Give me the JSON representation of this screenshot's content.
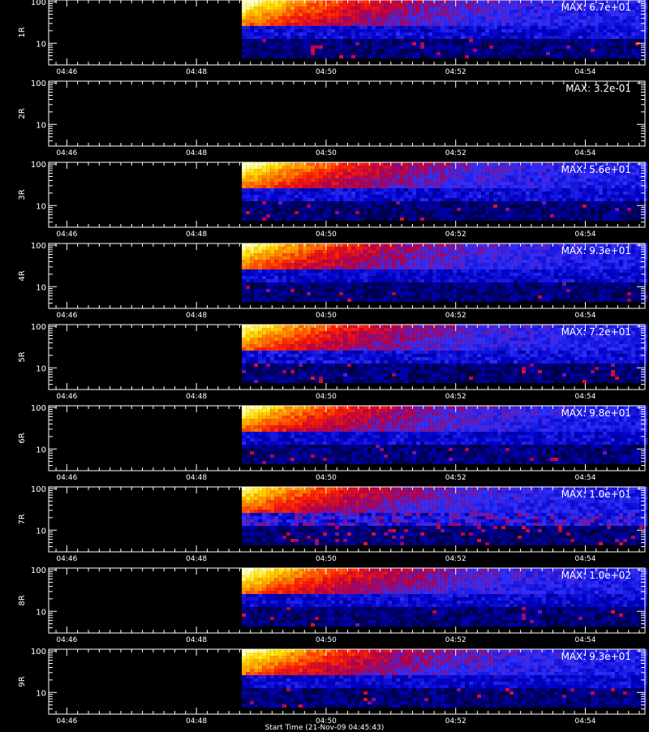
{
  "chart_data": {
    "type": "heatmap",
    "xlabel": "Start Time (21-Nov-09 04:45:43)",
    "x_ticks": [
      "04:46",
      "04:48",
      "04:50",
      "04:52",
      "04:54"
    ],
    "x_tick_minutes": [
      46,
      48,
      50,
      52,
      54
    ],
    "xlim_minutes": [
      45.72,
      54.92
    ],
    "y_ticks": [
      "10",
      "100"
    ],
    "y_scale": "log",
    "ylim": [
      3,
      110
    ],
    "data_start_minute": 48.7,
    "colormap": [
      "#000000",
      "#00005a",
      "#0000c8",
      "#3030ff",
      "#b00050",
      "#ff2000",
      "#ff8a00",
      "#ffe000",
      "#ffffc0"
    ],
    "panels": [
      {
        "label": "1R",
        "max_text": "MAX: 6.7e+01",
        "peak": 1.0,
        "noise": 0.1,
        "has_data": true
      },
      {
        "label": "2R",
        "max_text": "MAX: 3.2e-01",
        "peak": 0.0,
        "noise": 0.0,
        "has_data": false
      },
      {
        "label": "3R",
        "max_text": "MAX: 5.6e+01",
        "peak": 1.0,
        "noise": 0.1,
        "has_data": true
      },
      {
        "label": "4R",
        "max_text": "MAX: 9.3e+01",
        "peak": 0.95,
        "noise": 0.08,
        "has_data": true
      },
      {
        "label": "5R",
        "max_text": "MAX: 7.2e+01",
        "peak": 0.95,
        "noise": 0.12,
        "has_data": true
      },
      {
        "label": "6R",
        "max_text": "MAX: 9.8e+01",
        "peak": 0.95,
        "noise": 0.08,
        "has_data": true
      },
      {
        "label": "7R",
        "max_text": "MAX: 1.0e+01",
        "peak": 0.9,
        "noise": 0.28,
        "has_data": true
      },
      {
        "label": "8R",
        "max_text": "MAX: 1.0e+02",
        "peak": 1.0,
        "noise": 0.08,
        "has_data": true
      },
      {
        "label": "9R",
        "max_text": "MAX: 9.3e+01",
        "peak": 1.0,
        "noise": 0.08,
        "has_data": true
      }
    ]
  }
}
